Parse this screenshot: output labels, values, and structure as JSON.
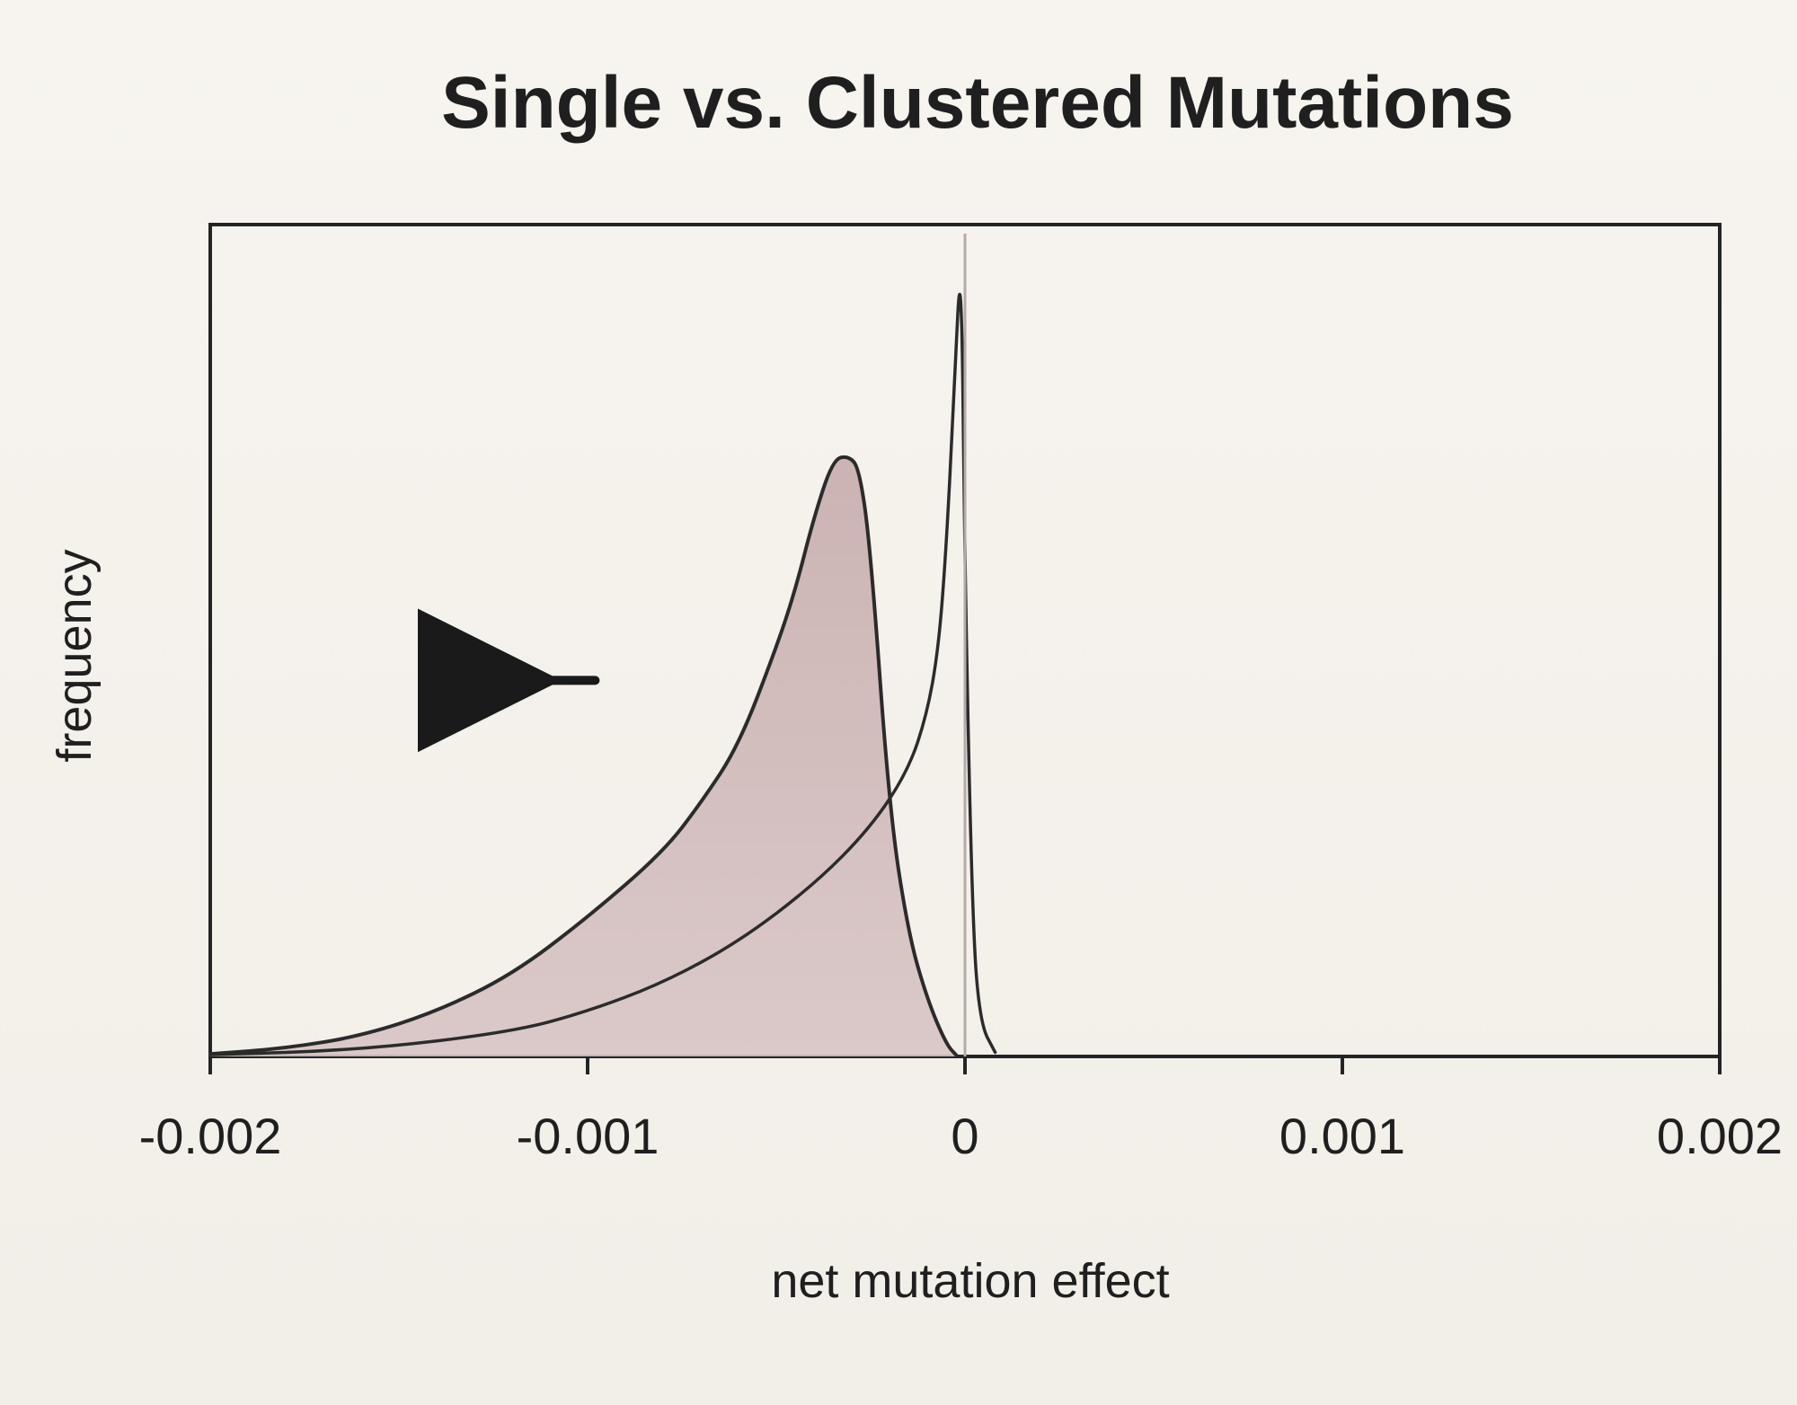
{
  "chart_data": {
    "type": "line",
    "title": "Single vs. Clustered Mutations",
    "xlabel": "net mutation effect",
    "ylabel": "frequency",
    "xlim": [
      -0.002,
      0.002
    ],
    "ylim": [
      0,
      1
    ],
    "x_ticks": [
      -0.002,
      -0.001,
      0,
      0.001,
      0.002
    ],
    "x_tick_labels": [
      "-0.002",
      "-0.001",
      "0",
      "0.001",
      "0.002"
    ],
    "grid": false,
    "annotations": [
      {
        "type": "reference-line",
        "x": 0
      },
      {
        "type": "arrow",
        "direction": "left"
      }
    ],
    "series": [
      {
        "color": "#2b2b2b",
        "fill": "#c9b2b2",
        "x": [
          -0.002,
          -0.0018,
          -0.0016,
          -0.0014,
          -0.0012,
          -0.001,
          -0.0008,
          -0.0007,
          -0.0006,
          -0.0005,
          -0.00045,
          -0.0004,
          -0.00035,
          -0.00031,
          -0.00028,
          -0.00025,
          -0.0002,
          -0.00015,
          -0.0001,
          -5e-05,
          -2e-05
        ],
        "y": [
          0.003,
          0.01,
          0.025,
          0.055,
          0.1,
          0.17,
          0.25,
          0.31,
          0.38,
          0.5,
          0.57,
          0.66,
          0.73,
          0.735,
          0.72,
          0.62,
          0.3,
          0.15,
          0.07,
          0.015,
          0.0
        ]
      },
      {
        "color": "#2b2b2b",
        "x": [
          -0.002,
          -0.0016,
          -0.0012,
          -0.001,
          -0.0008,
          -0.0006,
          -0.0004,
          -0.00025,
          -0.00015,
          -0.0001,
          -7e-05,
          -5e-05,
          -3e-05,
          -1e-05,
          0.0,
          2e-05,
          4e-05,
          8e-05
        ],
        "y": [
          0.002,
          0.008,
          0.03,
          0.055,
          0.09,
          0.14,
          0.21,
          0.28,
          0.35,
          0.42,
          0.5,
          0.62,
          0.8,
          1.0,
          0.58,
          0.16,
          0.04,
          0.005
        ]
      }
    ]
  }
}
